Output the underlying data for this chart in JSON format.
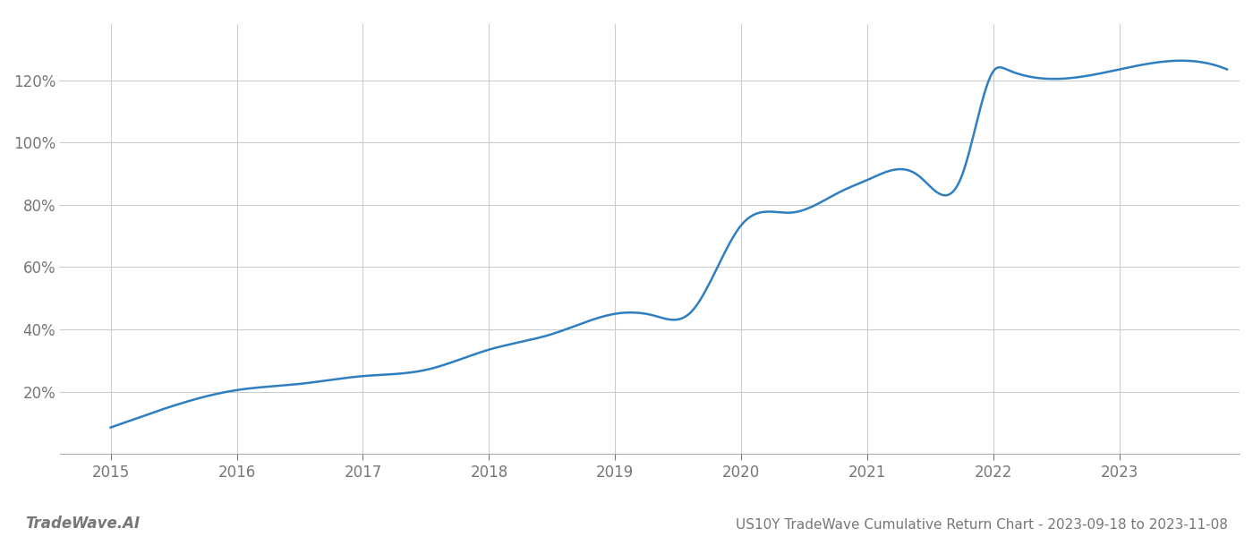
{
  "title": "US10Y TradeWave Cumulative Return Chart - 2023-09-18 to 2023-11-08",
  "watermark": "TradeWave.AI",
  "line_color": "#2e7fc1",
  "background_color": "#ffffff",
  "grid_color": "#cccccc",
  "key_x": [
    2015.0,
    2015.5,
    2016.0,
    2016.5,
    2017.0,
    2017.5,
    2018.0,
    2018.5,
    2019.0,
    2019.3,
    2019.6,
    2020.0,
    2020.4,
    2020.8,
    2021.0,
    2021.4,
    2021.75,
    2022.0,
    2022.1,
    2023.0,
    2023.85
  ],
  "key_y": [
    0.085,
    0.155,
    0.205,
    0.225,
    0.25,
    0.27,
    0.335,
    0.385,
    0.45,
    0.445,
    0.455,
    0.735,
    0.775,
    0.845,
    0.88,
    0.895,
    0.895,
    1.23,
    1.235,
    1.235,
    1.235
  ],
  "xlim": [
    2014.6,
    2023.95
  ],
  "ylim": [
    0.0,
    1.38
  ],
  "yticks": [
    0.2,
    0.4,
    0.6,
    0.8,
    1.0,
    1.2
  ],
  "ytick_labels": [
    "20%",
    "40%",
    "60%",
    "80%",
    "100%",
    "120%"
  ],
  "xticks": [
    2015,
    2016,
    2017,
    2018,
    2019,
    2020,
    2021,
    2022,
    2023
  ],
  "title_fontsize": 11,
  "tick_fontsize": 12,
  "watermark_fontsize": 12,
  "line_width": 1.8
}
